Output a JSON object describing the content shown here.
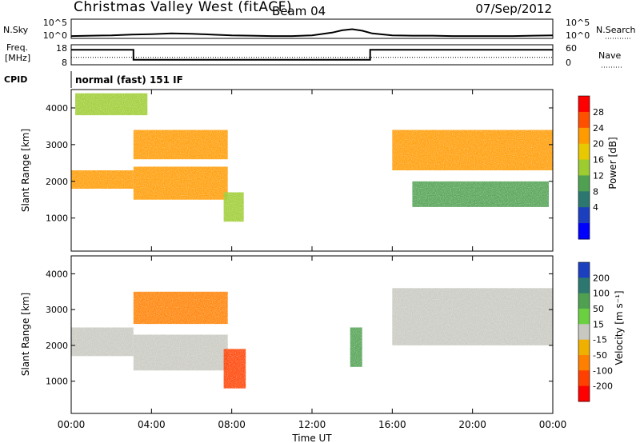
{
  "header": {
    "station": "Christmas Valley West (fitACF)",
    "beam": "Beam 04",
    "date": "07/Sep/2012"
  },
  "left_labels": {
    "nsky": "N.Sky",
    "freq_line1": "Freq.",
    "freq_line2": "[MHz]",
    "cpid": "CPID"
  },
  "right_labels": {
    "nsearch": "N.Search",
    "nave": "Nave"
  },
  "cpid_text": "normal (fast) 151 IF",
  "colors": {
    "frame": "#000000",
    "noise_line": "#000000"
  },
  "chart_data": [
    {
      "type": "line",
      "panel": "noise",
      "ylabel_left": "N.Sky",
      "ylabel_right": "N.Search",
      "yticks_left": [
        "10^5",
        "10^0"
      ],
      "yticks_right": [
        "10^5",
        "10^0"
      ],
      "x_hours": [
        0,
        1,
        2,
        3,
        4,
        5,
        6,
        7,
        8,
        9,
        10,
        11,
        12,
        13,
        13.5,
        14,
        14.5,
        15,
        16,
        17,
        18,
        19,
        20,
        21,
        22,
        23,
        24
      ],
      "log_sky": [
        0.6,
        0.7,
        0.8,
        1.0,
        1.1,
        1.3,
        1.2,
        1.0,
        0.8,
        0.7,
        0.6,
        0.6,
        0.8,
        1.5,
        2.1,
        2.4,
        2.0,
        1.3,
        0.8,
        0.7,
        0.7,
        0.6,
        0.6,
        0.6,
        0.6,
        0.7,
        0.8
      ],
      "ylim": [
        0,
        5
      ]
    },
    {
      "type": "line",
      "panel": "frequency",
      "ylabel_left": "Freq. [MHz]",
      "ylabel_right": "Nave",
      "yticks_left": [
        "18",
        "8"
      ],
      "yticks_right": [
        "60",
        "0"
      ],
      "ylim_left": [
        8,
        18
      ],
      "ylim_right": [
        0,
        60
      ],
      "freq_series": {
        "name": "Freq.",
        "x_hours": [
          0,
          3.1,
          3.1,
          14.9,
          14.9,
          24
        ],
        "values": [
          16,
          16,
          10,
          10,
          16,
          16
        ]
      },
      "nave_series": {
        "name": "Nave",
        "x_hours": [
          0,
          24
        ],
        "values": [
          21,
          21
        ]
      }
    },
    {
      "type": "heatmap",
      "panel": "power",
      "ylabel": "Slant Range [km]",
      "ylim": [
        100,
        4500
      ],
      "yticks": [
        1000,
        2000,
        3000,
        4000
      ],
      "colorbar_label": "Power [dB]",
      "colorbar_ticks": [
        28,
        24,
        20,
        16,
        12,
        8,
        4
      ],
      "colorbar_colors": [
        "#ff0000",
        "#ff5000",
        "#ff9a00",
        "#e8c800",
        "#9ccc30",
        "#4fa050",
        "#2c7870",
        "#1c3fc0",
        "#0000ff"
      ],
      "echo_regions": [
        {
          "name": "nightside band lower",
          "x_hours": [
            0,
            3.1
          ],
          "range_km": [
            1800,
            2300
          ],
          "power_db": 22
        },
        {
          "name": "nightside band upper",
          "x_hours": [
            3.1,
            7.8
          ],
          "range_km": [
            2600,
            3400
          ],
          "power_db": 20
        },
        {
          "name": "nightside band mid",
          "x_hours": [
            3.1,
            7.8
          ],
          "range_km": [
            1500,
            2400
          ],
          "power_db": 22
        },
        {
          "name": "far echoes",
          "x_hours": [
            0.2,
            3.8
          ],
          "range_km": [
            3800,
            4400
          ],
          "power_db": 14
        },
        {
          "name": "dawn streak",
          "x_hours": [
            7.6,
            8.6
          ],
          "range_km": [
            900,
            1700
          ],
          "power_db": 12
        },
        {
          "name": "afternoon band",
          "x_hours": [
            16,
            24
          ],
          "range_km": [
            2300,
            3400
          ],
          "power_db": 20
        },
        {
          "name": "afternoon lower",
          "x_hours": [
            17,
            23.8
          ],
          "range_km": [
            1300,
            2000
          ],
          "power_db": 10
        }
      ]
    },
    {
      "type": "heatmap",
      "panel": "velocity",
      "ylabel": "Slant Range [km]",
      "ylim": [
        100,
        4500
      ],
      "yticks": [
        1000,
        2000,
        3000,
        4000
      ],
      "colorbar_label": "Velocity [m s⁻¹]",
      "colorbar_ticks": [
        200,
        100,
        50,
        15,
        -15,
        -50,
        -100,
        -200
      ],
      "colorbar_colors": [
        "#1c3fc0",
        "#2c7870",
        "#4fa050",
        "#6ad040",
        "#c8c8c0",
        "#f0b000",
        "#ff8000",
        "#ff4000",
        "#ff0000"
      ],
      "echo_regions": [
        {
          "name": "nightside band lower",
          "x_hours": [
            0,
            3.1
          ],
          "range_km": [
            1700,
            2500
          ],
          "velocity": 0
        },
        {
          "name": "nightside upper",
          "x_hours": [
            3.1,
            7.8
          ],
          "range_km": [
            2600,
            3500
          ],
          "velocity": -60
        },
        {
          "name": "nightside mid",
          "x_hours": [
            3.1,
            7.8
          ],
          "range_km": [
            1300,
            2300
          ],
          "velocity": 0
        },
        {
          "name": "dawn streak",
          "x_hours": [
            7.6,
            8.7
          ],
          "range_km": [
            800,
            1900
          ],
          "velocity": -200
        },
        {
          "name": "afternoon band",
          "x_hours": [
            16,
            24
          ],
          "range_km": [
            2000,
            3600
          ],
          "velocity": 0
        },
        {
          "name": "green streak",
          "x_hours": [
            13.9,
            14.5
          ],
          "range_km": [
            1400,
            2500
          ],
          "velocity": 60
        }
      ]
    }
  ],
  "x_axis": {
    "ticks": [
      "00:00",
      "04:00",
      "08:00",
      "12:00",
      "16:00",
      "20:00",
      "00:00"
    ],
    "label": "Time UT"
  }
}
